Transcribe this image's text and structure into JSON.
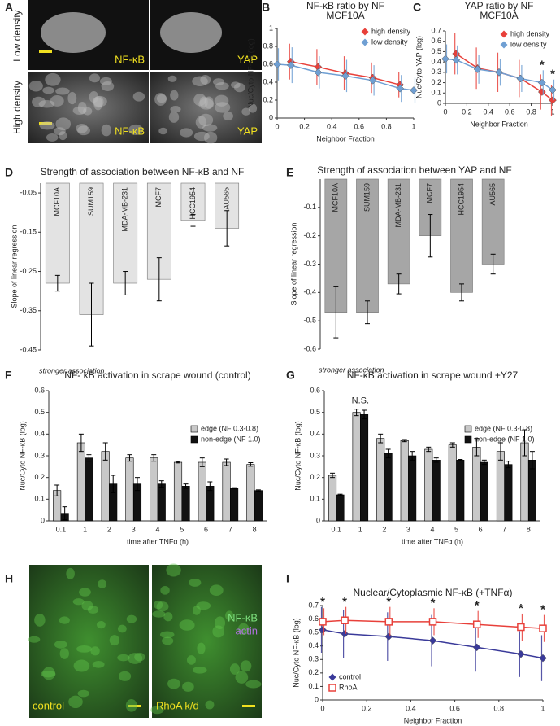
{
  "panels": {
    "A": {
      "letter": "A",
      "row_labels": [
        "Low density",
        "High density"
      ],
      "channel_labels": [
        "NF-κB",
        "YAP",
        "NF-κB",
        "YAP"
      ]
    },
    "H": {
      "letter": "H",
      "channel_labels": [
        "NF-κB",
        "actin"
      ],
      "condition_labels": [
        "control",
        "RhoA k/d"
      ]
    }
  },
  "chart_data": [
    {
      "type": "scatter",
      "letter": "B",
      "title": "NF-κB ratio by NF",
      "subtitle": "MCF10A",
      "xlabel": "Neighbor Fraction",
      "ylabel": "Nuc/Cyto NF-κB (log)",
      "xlim": [
        0,
        1
      ],
      "ylim": [
        0,
        1
      ],
      "xticks": [
        0,
        0.2,
        0.4,
        0.6,
        0.8,
        1
      ],
      "yticks": [
        0,
        0.2,
        0.4,
        0.6,
        0.8,
        1
      ],
      "legend": "top-right",
      "series": [
        {
          "name": "high density",
          "color": "#e8403a",
          "marker": "diamond",
          "x": [
            0.1,
            0.3,
            0.5,
            0.7,
            0.9
          ],
          "values": [
            0.63,
            0.57,
            0.5,
            0.45,
            0.37
          ],
          "errors": [
            0.2,
            0.2,
            0.19,
            0.17,
            0.14
          ]
        },
        {
          "name": "low density",
          "color": "#6f9fd3",
          "marker": "diamond",
          "x": [
            0,
            0.1,
            0.3,
            0.5,
            0.7,
            0.9,
            1
          ],
          "values": [
            0.6,
            0.59,
            0.51,
            0.47,
            0.42,
            0.33,
            0.31
          ],
          "errors": [
            0.18,
            0.2,
            0.18,
            0.18,
            0.17,
            0.15,
            0.14
          ]
        }
      ]
    },
    {
      "type": "scatter",
      "letter": "C",
      "title": "YAP ratio by NF",
      "subtitle": "MCF10A",
      "xlabel": "Neighbor Fraction",
      "ylabel": "Nuc/Cyto YAP (log)",
      "xlim": [
        0,
        1
      ],
      "ylim": [
        0,
        0.7
      ],
      "xticks": [
        0,
        0.2,
        0.4,
        0.6,
        0.8,
        1
      ],
      "yticks": [
        0,
        0.1,
        0.2,
        0.3,
        0.4,
        0.5,
        0.6,
        0.7
      ],
      "legend": "top-right",
      "series": [
        {
          "name": "high density",
          "color": "#e8403a",
          "marker": "diamond",
          "x": [
            0.1,
            0.3,
            0.5,
            0.7,
            0.9,
            1
          ],
          "values": [
            0.48,
            0.34,
            0.3,
            0.24,
            0.11,
            0.03
          ],
          "errors": [
            0.2,
            0.2,
            0.19,
            0.18,
            0.17,
            0.15
          ]
        },
        {
          "name": "low density",
          "color": "#6f9fd3",
          "marker": "diamond",
          "x": [
            0,
            0.1,
            0.3,
            0.5,
            0.7,
            0.9,
            1
          ],
          "values": [
            0.43,
            0.42,
            0.33,
            0.3,
            0.24,
            0.2,
            0.13
          ],
          "errors": [
            0.14,
            0.14,
            0.14,
            0.13,
            0.13,
            0.12,
            0.1
          ]
        }
      ],
      "annotations": [
        {
          "text": "*",
          "x": 0.9
        },
        {
          "text": "*",
          "x": 1
        }
      ]
    },
    {
      "type": "bar",
      "letter": "D",
      "title": "Strength of association between NF-κB and NF",
      "ylabel": "Slope of linear regression",
      "note": "stronger association",
      "color": "#e3e3e3",
      "categories": [
        "MCF10A",
        "SUM159",
        "MDA-MB-231",
        "MCF7",
        "HCC1954",
        "AU565"
      ],
      "values": [
        -0.28,
        -0.36,
        -0.28,
        -0.27,
        -0.12,
        -0.14
      ],
      "errors": [
        0.02,
        0.08,
        0.03,
        0.055,
        0.015,
        0.045
      ],
      "ylim": [
        -0.45,
        -0.025
      ],
      "yticks": [
        -0.05,
        -0.15,
        -0.25,
        -0.35,
        -0.45
      ]
    },
    {
      "type": "bar",
      "letter": "E",
      "title": "Strength of association between YAP and NF",
      "ylabel": "Slope of linear regression",
      "note": "stronger association",
      "color": "#a6a6a6",
      "categories": [
        "MCF10A",
        "SUM159",
        "MDA-MB-231",
        "MCF7",
        "HCC1954",
        "AU565"
      ],
      "values": [
        -0.47,
        -0.47,
        -0.37,
        -0.2,
        -0.4,
        -0.3
      ],
      "errors": [
        0.09,
        0.04,
        0.035,
        0.075,
        0.03,
        0.035
      ],
      "ylim": [
        -0.6,
        0
      ],
      "yticks": [
        -0.1,
        -0.2,
        -0.3,
        -0.4,
        -0.5,
        -0.6
      ]
    },
    {
      "type": "bar",
      "letter": "F",
      "title": "NF- κB activation in scrape wound (control)",
      "xlabel": "time after TNFα (h)",
      "ylabel": "Nuc/Cyto NF-κB (log)",
      "legend": "top-right",
      "categories": [
        "0.1",
        "1",
        "2",
        "3",
        "4",
        "5",
        "6",
        "7",
        "8"
      ],
      "ylim": [
        0,
        0.6
      ],
      "yticks": [
        0,
        0.1,
        0.2,
        0.3,
        0.4,
        0.5,
        0.6
      ],
      "series": [
        {
          "name": "edge (NF 0.3-0.8)",
          "color": "#c8c8c8",
          "values": [
            0.14,
            0.36,
            0.32,
            0.29,
            0.29,
            0.27,
            0.27,
            0.27,
            0.26
          ],
          "errors": [
            0.025,
            0.04,
            0.04,
            0.015,
            0.015,
            0.003,
            0.02,
            0.015,
            0.008
          ]
        },
        {
          "name": "non-edge (NF 1.0)",
          "color": "#111111",
          "values": [
            0.035,
            0.29,
            0.17,
            0.17,
            0.17,
            0.16,
            0.16,
            0.15,
            0.14
          ],
          "errors": [
            0.03,
            0.015,
            0.04,
            0.03,
            0.015,
            0.01,
            0.02,
            0.003,
            0.003
          ]
        }
      ]
    },
    {
      "type": "bar",
      "letter": "G",
      "title": "NF-κB activation in scrape wound +Y27",
      "xlabel": "time after TNFα (h)",
      "ylabel": "Nuc/Cyto NF-κB (log)",
      "legend": "top-right",
      "categories": [
        "0.1",
        "1",
        "2",
        "3",
        "4",
        "5",
        "6",
        "7",
        "8"
      ],
      "ylim": [
        0,
        0.6
      ],
      "yticks": [
        0,
        0.1,
        0.2,
        0.3,
        0.4,
        0.5,
        0.6
      ],
      "series": [
        {
          "name": "edge (NF 0.3-0.8)",
          "color": "#c8c8c8",
          "values": [
            0.21,
            0.5,
            0.38,
            0.37,
            0.33,
            0.35,
            0.34,
            0.32,
            0.36
          ],
          "errors": [
            0.01,
            0.015,
            0.02,
            0.005,
            0.01,
            0.01,
            0.04,
            0.04,
            0.06
          ]
        },
        {
          "name": "non-edge (NF 1.0)",
          "color": "#111111",
          "values": [
            0.12,
            0.49,
            0.31,
            0.3,
            0.28,
            0.28,
            0.27,
            0.26,
            0.28
          ],
          "errors": [
            0.003,
            0.02,
            0.02,
            0.02,
            0.01,
            0.003,
            0.01,
            0.015,
            0.04
          ]
        }
      ],
      "annotations": [
        {
          "text": "N.S.",
          "category": "1"
        }
      ]
    },
    {
      "type": "scatter",
      "letter": "I",
      "title": "Nuclear/Cytoplasmic NF-κB (+TNFα)",
      "xlabel": "Neighbor Fraction",
      "ylabel": "Nuc/Cyto NF-κB (log)",
      "xlim": [
        0,
        1
      ],
      "ylim": [
        0,
        0.7
      ],
      "xticks": [
        0,
        0.2,
        0.4,
        0.6,
        0.8,
        1
      ],
      "yticks": [
        0,
        0.1,
        0.2,
        0.3,
        0.4,
        0.5,
        0.6,
        0.7
      ],
      "legend": "bottom-left",
      "series": [
        {
          "name": "control",
          "color": "#3a3a9a",
          "marker": "diamond",
          "x": [
            0,
            0.1,
            0.3,
            0.5,
            0.7,
            0.9,
            1
          ],
          "values": [
            0.52,
            0.49,
            0.47,
            0.44,
            0.39,
            0.34,
            0.31
          ],
          "errors": [
            0.17,
            0.18,
            0.18,
            0.19,
            0.18,
            0.17,
            0.17
          ]
        },
        {
          "name": "RhoA",
          "color": "#e8403a",
          "marker": "square",
          "x": [
            0,
            0.1,
            0.3,
            0.5,
            0.7,
            0.9,
            1
          ],
          "values": [
            0.58,
            0.59,
            0.58,
            0.58,
            0.56,
            0.54,
            0.53
          ],
          "errors": [
            0.1,
            0.1,
            0.11,
            0.1,
            0.1,
            0.1,
            0.1
          ]
        }
      ],
      "annotations": [
        {
          "text": "*",
          "x": 0
        },
        {
          "text": "*",
          "x": 0.1
        },
        {
          "text": "*",
          "x": 0.3
        },
        {
          "text": "*",
          "x": 0.5
        },
        {
          "text": "*",
          "x": 0.7
        },
        {
          "text": "*",
          "x": 0.9
        },
        {
          "text": "*",
          "x": 1
        }
      ]
    }
  ]
}
